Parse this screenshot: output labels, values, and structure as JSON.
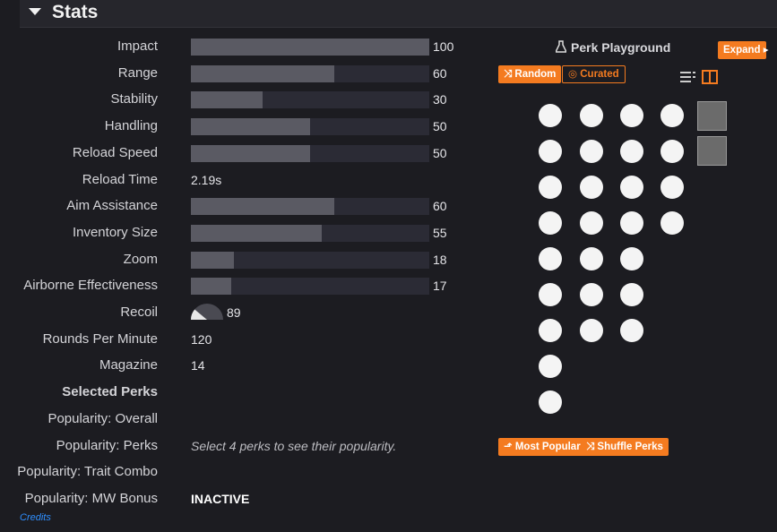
{
  "header": {
    "title": "Stats"
  },
  "value_range": [
    0,
    100
  ],
  "stats": [
    {
      "label": "Impact",
      "kind": "bar",
      "value": 100
    },
    {
      "label": "Range",
      "kind": "bar",
      "value": 60
    },
    {
      "label": "Stability",
      "kind": "bar",
      "value": 30
    },
    {
      "label": "Handling",
      "kind": "bar",
      "value": 50
    },
    {
      "label": "Reload Speed",
      "kind": "bar",
      "value": 50
    },
    {
      "label": "Reload Time",
      "kind": "text",
      "text": "2.19s"
    },
    {
      "label": "Aim Assistance",
      "kind": "bar",
      "value": 60
    },
    {
      "label": "Inventory Size",
      "kind": "bar",
      "value": 55
    },
    {
      "label": "Zoom",
      "kind": "bar",
      "value": 18
    },
    {
      "label": "Airborne Effectiveness",
      "kind": "bar",
      "value": 17
    },
    {
      "label": "Recoil",
      "kind": "recoil",
      "value": 89
    },
    {
      "label": "Rounds Per Minute",
      "kind": "number",
      "value": 120
    },
    {
      "label": "Magazine",
      "kind": "number",
      "value": 14
    }
  ],
  "selected_perks": "Selected Perks",
  "popularity": [
    {
      "label": "Popularity: Overall"
    },
    {
      "label": "Popularity: Perks",
      "text": "Select 4 perks to see their popularity."
    },
    {
      "label": "Popularity: Trait Combo"
    },
    {
      "label": "Popularity: MW Bonus",
      "text": "INACTIVE"
    }
  ],
  "credits": "Credits",
  "perk_panel": {
    "title": "Perk Playground",
    "expand": "Expand",
    "random": "Random",
    "curated": "Curated",
    "most_popular": "Most Popular",
    "shuffle": "Shuffle Perks"
  }
}
